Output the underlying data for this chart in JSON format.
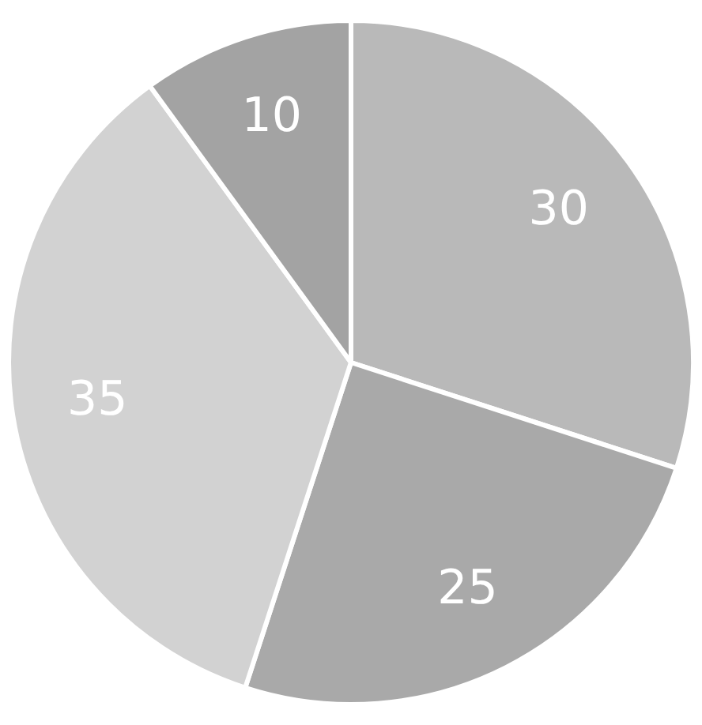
{
  "chart_data": {
    "type": "pie",
    "categories": [
      null,
      null,
      null,
      null
    ],
    "values": [
      30,
      25,
      35,
      10
    ],
    "colors": [
      "#b9b9b9",
      "#a9a9a9",
      "#d2d2d2",
      "#a3a3a3"
    ],
    "data_labels": true,
    "legend": false
  }
}
